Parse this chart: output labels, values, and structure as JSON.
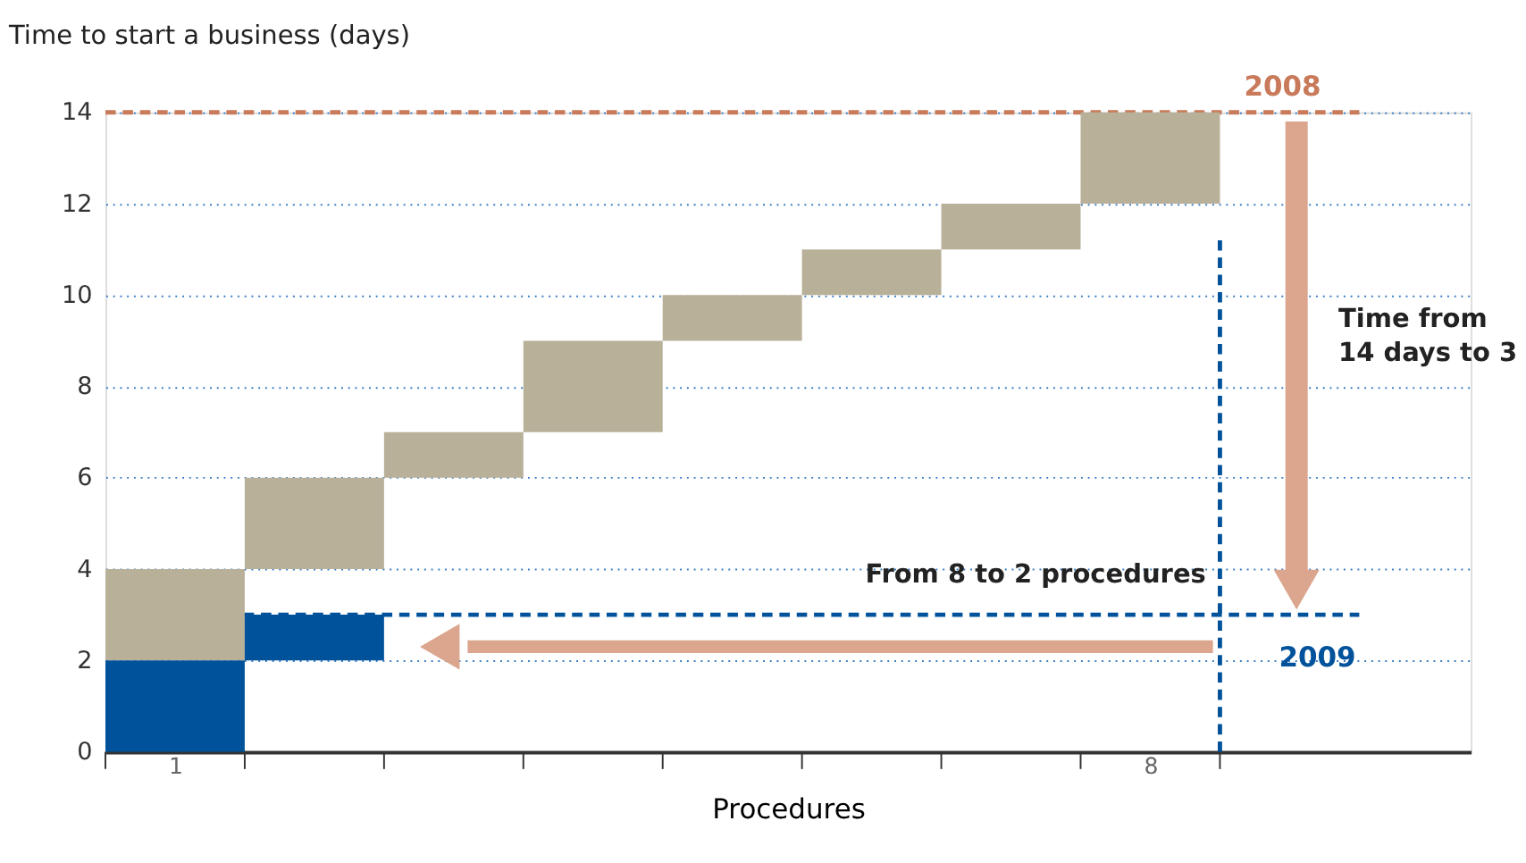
{
  "chart_data": {
    "type": "bar",
    "title": "Time to start a business (days)",
    "xlabel": "Procedures",
    "categories": [
      "1",
      null,
      null,
      null,
      null,
      null,
      null,
      "8"
    ],
    "series": [
      {
        "name": "2008",
        "color": "#b8b098",
        "values": [
          2,
          2,
          1,
          2,
          1,
          1,
          1,
          2
        ],
        "base": [
          2,
          4,
          6,
          7,
          9,
          10,
          11,
          12
        ]
      },
      {
        "name": "2009",
        "color": "#00529b",
        "values": [
          2,
          1,
          null,
          null,
          null,
          null,
          null,
          null
        ],
        "base": [
          0,
          2,
          null,
          null,
          null,
          null,
          null,
          null
        ]
      }
    ],
    "ylim": [
      0,
      14
    ],
    "yticks": [
      0,
      2,
      4,
      6,
      8,
      10,
      12,
      14
    ],
    "grid": "y",
    "ref_lines": [
      {
        "axis": "y",
        "value": 14,
        "color": "#c87a5a",
        "line_style": "dashed"
      },
      {
        "axis": "y",
        "value": 3,
        "color": "#00529b",
        "line_style": "dashed"
      },
      {
        "axis": "x",
        "value": "8",
        "color": "#00529b",
        "line_style": "dashed"
      }
    ],
    "annotations": [
      "Time from\n14 days to 3",
      "From 8 to 2 procedures"
    ]
  }
}
